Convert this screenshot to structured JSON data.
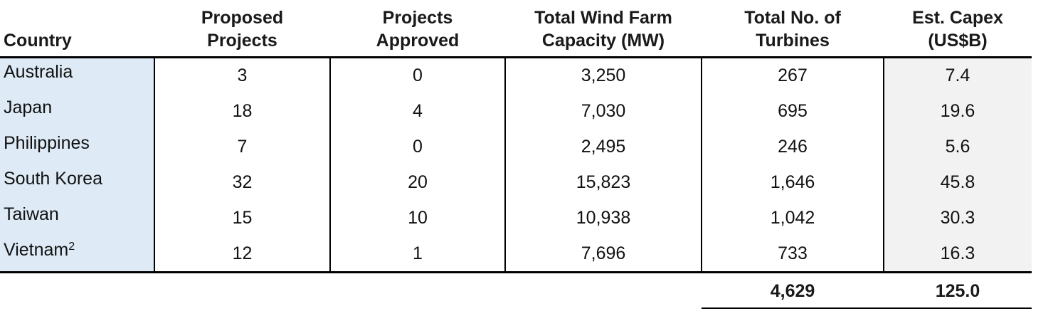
{
  "table": {
    "header": {
      "country": "Country",
      "columns": [
        [
          "Proposed",
          "Projects"
        ],
        [
          "Projects",
          "Approved"
        ],
        [
          "Total Wind Farm",
          "Capacity (MW)"
        ],
        [
          "Total No. of",
          "Turbines"
        ],
        [
          "Est. Capex",
          "(US$B)"
        ]
      ]
    },
    "rows": [
      {
        "country": "Australia",
        "values": [
          "3",
          "0",
          "3,250",
          "267",
          "7.4"
        ]
      },
      {
        "country": "Japan",
        "values": [
          "18",
          "4",
          "7,030",
          "695",
          "19.6"
        ]
      },
      {
        "country": "Philippines",
        "values": [
          "7",
          "0",
          "2,495",
          "246",
          "5.6"
        ]
      },
      {
        "country": "South Korea",
        "values": [
          "32",
          "20",
          "15,823",
          "1,646",
          "45.8"
        ]
      },
      {
        "country": "Taiwan",
        "values": [
          "15",
          "10",
          "10,938",
          "1,042",
          "30.3"
        ]
      },
      {
        "country": "Vietnam",
        "footnote": "2",
        "values": [
          "12",
          "1",
          "7,696",
          "733",
          "16.3"
        ]
      }
    ],
    "totals": {
      "turbines": "4,629",
      "capex": "125.0"
    }
  }
}
